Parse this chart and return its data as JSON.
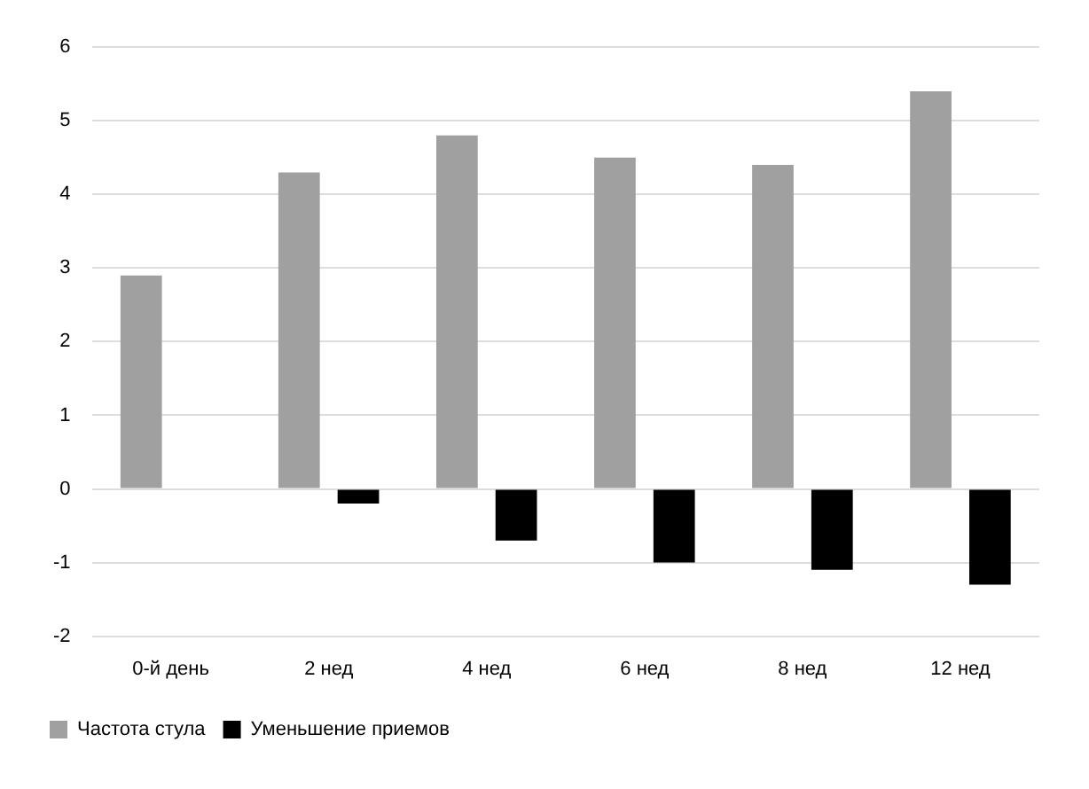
{
  "chart_data": {
    "type": "bar",
    "categories": [
      "0-й день",
      "2 нед",
      "4 нед",
      "6 нед",
      "8 нед",
      "12 нед"
    ],
    "series": [
      {
        "name": "Частота стула",
        "color": "#a0a0a0",
        "values": [
          2.9,
          4.3,
          4.8,
          4.5,
          4.4,
          5.4
        ]
      },
      {
        "name": "Уменьшение приемов",
        "color": "#000000",
        "values": [
          null,
          -0.2,
          -0.7,
          -1.0,
          -1.1,
          -1.3
        ]
      }
    ],
    "ylim": [
      -2,
      6
    ],
    "yticks": [
      -2,
      -1,
      0,
      1,
      2,
      3,
      4,
      5,
      6
    ],
    "grid": "y",
    "legend": "bottom left"
  }
}
